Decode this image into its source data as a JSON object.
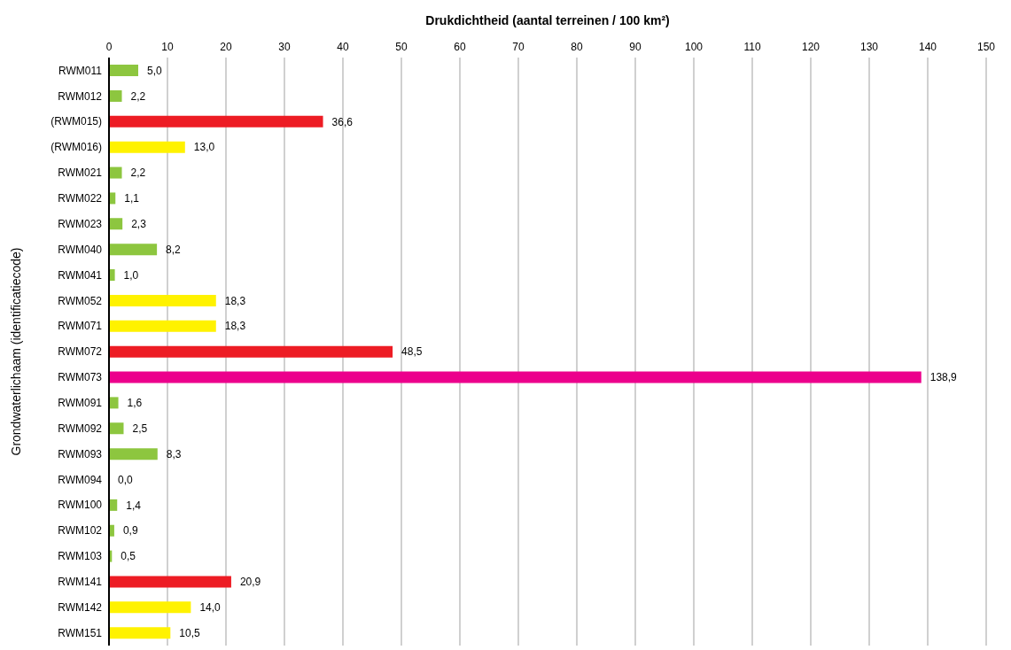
{
  "chart_data": {
    "type": "bar",
    "orientation": "horizontal",
    "xlabel": "Drukdichtheid (aantal terreinen / 100 km²)",
    "ylabel": "Grondwaterlichaam (identificatiecode)",
    "categories": [
      "RWM011",
      "RWM012",
      "(RWM015)",
      "(RWM016)",
      "RWM021",
      "RWM022",
      "RWM023",
      "RWM040",
      "RWM041",
      "RWM052",
      "RWM071",
      "RWM072",
      "RWM073",
      "RWM091",
      "RWM092",
      "RWM093",
      "RWM094",
      "RWM100",
      "RWM102",
      "RWM103",
      "RWM141",
      "RWM142",
      "RWM151"
    ],
    "values": [
      5.0,
      2.2,
      36.6,
      13.0,
      2.2,
      1.1,
      2.3,
      8.2,
      1.0,
      18.3,
      18.3,
      48.5,
      138.9,
      1.6,
      2.5,
      8.3,
      0.0,
      1.4,
      0.9,
      0.5,
      20.9,
      14.0,
      10.5
    ],
    "value_labels": [
      "5,0",
      "2,2",
      "36,6",
      "13,0",
      "2,2",
      "1,1",
      "2,3",
      "8,2",
      "1,0",
      "18,3",
      "18,3",
      "48,5",
      "138,9",
      "1,6",
      "2,5",
      "8,3",
      "0,0",
      "1,4",
      "0,9",
      "0,5",
      "20,9",
      "14,0",
      "10,5"
    ],
    "colors": [
      "#8dc63f",
      "#8dc63f",
      "#ed1c24",
      "#fff200",
      "#8dc63f",
      "#8dc63f",
      "#8dc63f",
      "#8dc63f",
      "#8dc63f",
      "#fff200",
      "#fff200",
      "#ed1c24",
      "#ec008c",
      "#8dc63f",
      "#8dc63f",
      "#8dc63f",
      "#8dc63f",
      "#8dc63f",
      "#8dc63f",
      "#8dc63f",
      "#ed1c24",
      "#fff200",
      "#fff200"
    ],
    "xlim": [
      0,
      150
    ],
    "xticks": [
      0,
      10,
      20,
      30,
      40,
      50,
      60,
      70,
      80,
      90,
      100,
      110,
      120,
      130,
      140,
      150
    ],
    "grid": "x"
  }
}
